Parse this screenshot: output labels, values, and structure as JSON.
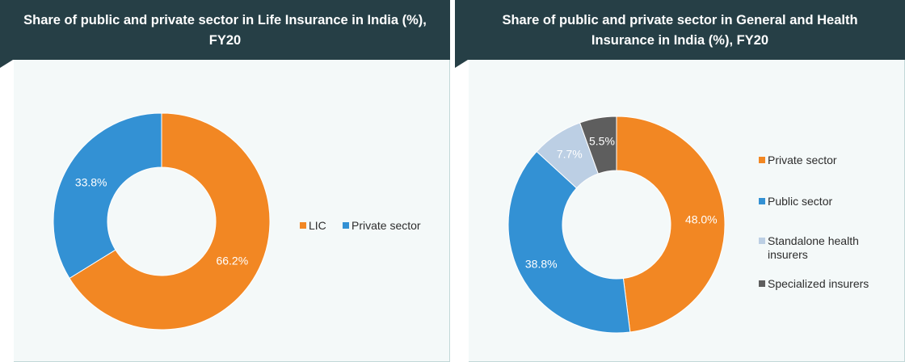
{
  "chart_data": [
    {
      "type": "pie",
      "title": "Share of public and private sector in Life Insurance in India (%), FY20",
      "title_lines": [
        "Share of public and private sector in Life Insurance in India (%),",
        "FY20"
      ],
      "legend_position": "right",
      "series": [
        {
          "name": "LIC",
          "value": 66.2,
          "label": "66.2%",
          "color": "#f28723"
        },
        {
          "name": "Private sector",
          "value": 33.8,
          "label": "33.8%",
          "color": "#3391d4"
        }
      ]
    },
    {
      "type": "pie",
      "title": "Share of public and private sector in General and Health Insurance in India (%), FY20",
      "title_lines": [
        "Share of public and private sector in General and Health",
        "Insurance in India (%), FY20"
      ],
      "legend_position": "right",
      "series": [
        {
          "name": "Private sector",
          "value": 48.0,
          "label": "48.0%",
          "color": "#f28723"
        },
        {
          "name": "Public sector",
          "value": 38.8,
          "label": "38.8%",
          "color": "#3391d4"
        },
        {
          "name": "Standalone health insurers",
          "value": 7.7,
          "label": "7.7%",
          "color": "#bccfe4"
        },
        {
          "name": "Specialized insurers",
          "value": 5.5,
          "label": "5.5%",
          "color": "#5e5e5e"
        }
      ]
    }
  ]
}
